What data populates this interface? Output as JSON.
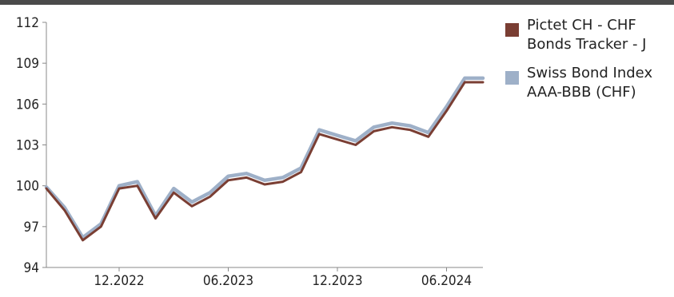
{
  "chart_data": {
    "type": "line",
    "title": "",
    "xlabel": "",
    "ylabel": "",
    "ylim": [
      94,
      112
    ],
    "yticks": [
      "94",
      "97",
      "100",
      "103",
      "106",
      "109",
      "112"
    ],
    "xtick_labels": [
      "12.2022",
      "06.2023",
      "12.2023",
      "06.2024"
    ],
    "x_range": [
      "2022-08",
      "2024-08"
    ],
    "grid": false,
    "legend_position": "right",
    "x": [
      "2022-08",
      "2022-09",
      "2022-10",
      "2022-11",
      "2022-12",
      "2023-01",
      "2023-02",
      "2023-03",
      "2023-04",
      "2023-05",
      "2023-06",
      "2023-07",
      "2023-08",
      "2023-09",
      "2023-10",
      "2023-11",
      "2023-12",
      "2024-01",
      "2024-02",
      "2024-03",
      "2024-04",
      "2024-05",
      "2024-06",
      "2024-07",
      "2024-08"
    ],
    "series": [
      {
        "name": "Pictet CH - CHF Bonds Tracker - J",
        "color": "#7a3e33",
        "values": [
          99.8,
          98.2,
          96.0,
          97.0,
          99.8,
          100.0,
          97.6,
          99.5,
          98.5,
          99.2,
          100.4,
          100.6,
          100.1,
          100.3,
          101.0,
          103.8,
          103.4,
          103.0,
          104.0,
          104.3,
          104.1,
          103.6,
          105.5,
          107.6,
          107.6
        ]
      },
      {
        "name": "Swiss Bond Index AAA-BBB (CHF)",
        "color": "#9eb0c8",
        "values": [
          99.9,
          98.4,
          96.2,
          97.2,
          100.0,
          100.3,
          97.8,
          99.8,
          98.8,
          99.5,
          100.7,
          100.9,
          100.4,
          100.6,
          101.3,
          104.1,
          103.7,
          103.3,
          104.3,
          104.6,
          104.4,
          103.9,
          105.8,
          107.9,
          107.9
        ]
      }
    ]
  }
}
